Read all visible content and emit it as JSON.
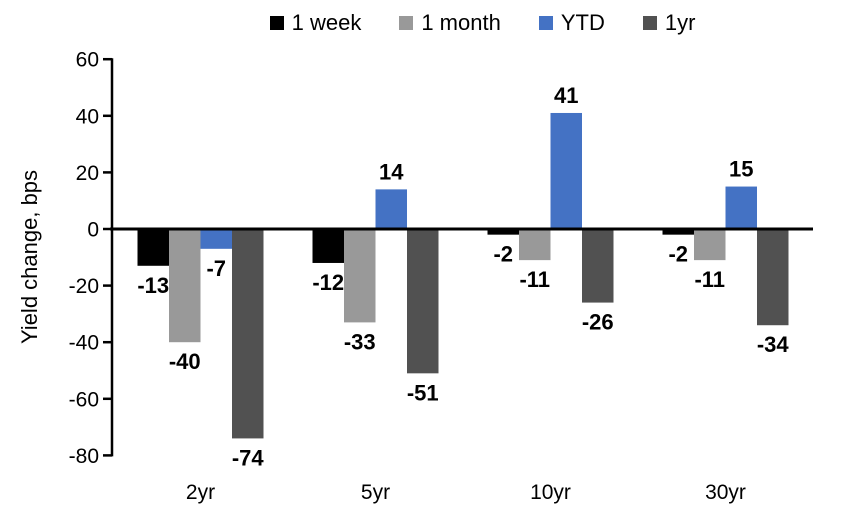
{
  "chart_data": {
    "type": "bar",
    "title": "",
    "ylabel": "Yield change, bps",
    "xlabel": "",
    "categories": [
      "2yr",
      "5yr",
      "10yr",
      "30yr"
    ],
    "series": [
      {
        "name": "1 week",
        "color": "#000000",
        "values": [
          -13,
          -12,
          -2,
          -2
        ]
      },
      {
        "name": "1 month",
        "color": "#999999",
        "values": [
          -40,
          -33,
          -11,
          -11
        ]
      },
      {
        "name": "YTD",
        "color": "#4472C4",
        "values": [
          -7,
          14,
          41,
          15
        ]
      },
      {
        "name": "1yr",
        "color": "#515151",
        "values": [
          -74,
          -51,
          -26,
          -34
        ]
      }
    ],
    "ylim": [
      -80,
      60
    ],
    "ytick_step": 20,
    "grid": false,
    "legend_position": "top",
    "data_labels": true,
    "axis_color": "#000000",
    "background": "#FFFFFF"
  }
}
